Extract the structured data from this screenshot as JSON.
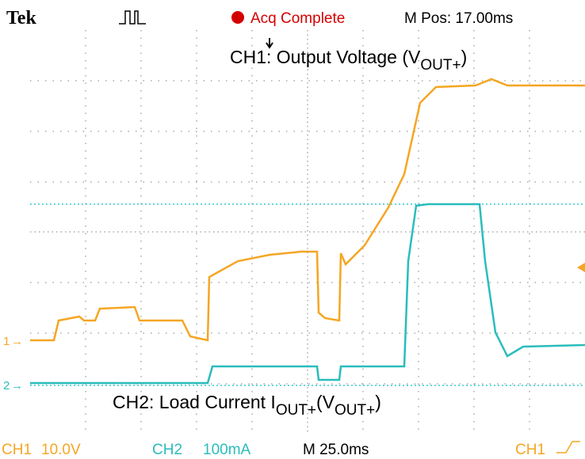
{
  "header": {
    "brand": "Tek",
    "status": "Acq Complete",
    "position": "M Pos: 17.00ms"
  },
  "annotations": {
    "ch1": {
      "text": "CH1: Output Voltage (V",
      "sub": "OUT+",
      "end": ")"
    },
    "ch2": {
      "text": "CH2: Load Current I",
      "sub": "OUT+",
      "mid": "(V",
      "sub2": "OUT+",
      "end": ")"
    }
  },
  "markers": {
    "ch1": "1",
    "ch2": "2"
  },
  "footer": {
    "ch1": "CH1",
    "ch1_scale": "10.0V",
    "ch2": "CH2",
    "ch2_scale": "100mA",
    "time": "M 25.0ms",
    "trigger": "CH1"
  }
}
